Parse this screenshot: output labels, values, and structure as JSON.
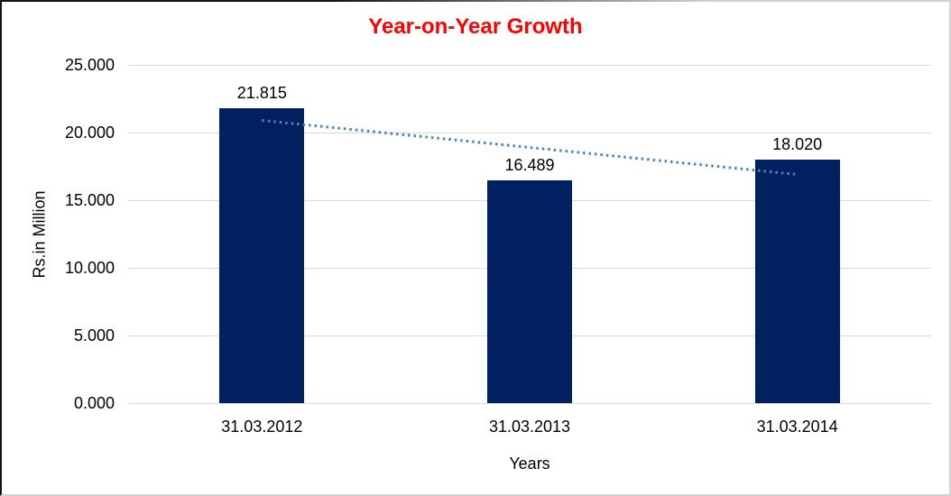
{
  "chart_data": {
    "type": "bar",
    "title": "Year-on-Year Growth",
    "title_color": "#FF0000",
    "xlabel": "Years",
    "ylabel": "Rs.in Million",
    "categories": [
      "31.03.2012",
      "31.03.2013",
      "31.03.2014"
    ],
    "values": [
      21.815,
      16.489,
      18.02
    ],
    "data_labels": [
      "21.815",
      "16.489",
      "18.020"
    ],
    "ylim": [
      0,
      25
    ],
    "ytick_step": 5,
    "ytick_labels": [
      "0.000",
      "5.000",
      "10.000",
      "15.000",
      "20.000",
      "25.000"
    ],
    "grid": true,
    "gridline_color": "#d9d9d9",
    "bar_color": "#002060",
    "legend": "none",
    "trendline": {
      "type": "linear",
      "style": "dotted",
      "color": "#4F81BD",
      "start_value": 20.9,
      "end_value": 16.9
    }
  }
}
